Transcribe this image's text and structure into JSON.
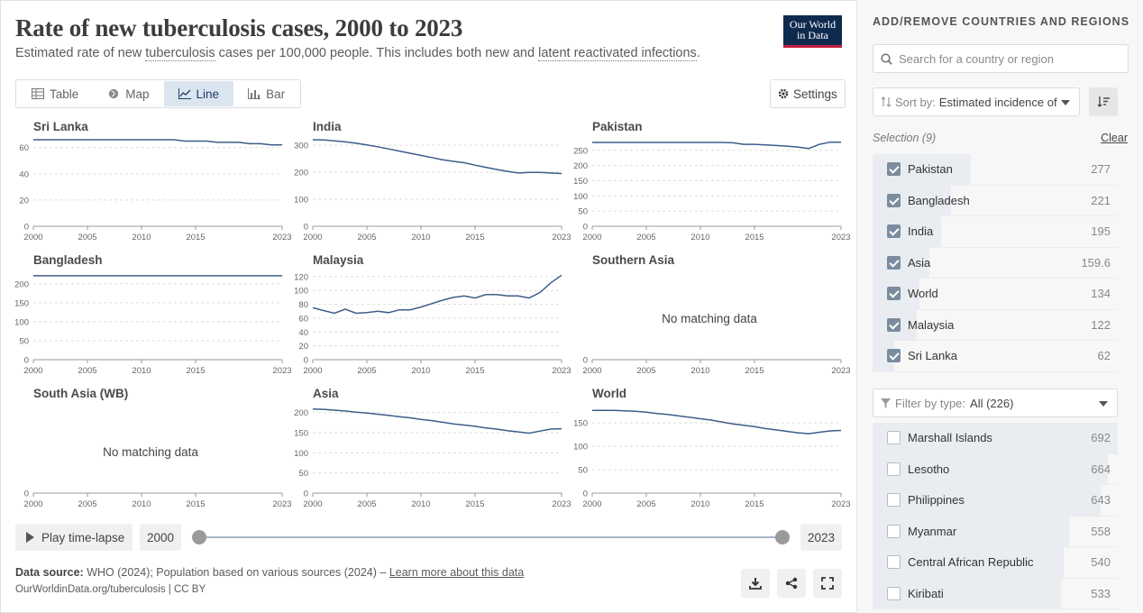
{
  "header": {
    "title": "Rate of new tuberculosis cases, 2000 to 2023",
    "subtitle_1": "Estimated rate of new ",
    "subtitle_link_1": "tuberculosis",
    "subtitle_2": " cases per 100,000 people. This includes both new and ",
    "subtitle_link_2": "latent reactivated infections",
    "subtitle_3": ".",
    "logo_line1": "Our World",
    "logo_line2": "in Data"
  },
  "tabs": [
    {
      "label": "Table",
      "icon": "table-icon",
      "active": false
    },
    {
      "label": "Map",
      "icon": "globe-icon",
      "active": false
    },
    {
      "label": "Line",
      "icon": "line-chart-icon",
      "active": true
    },
    {
      "label": "Bar",
      "icon": "bar-chart-icon",
      "active": false
    }
  ],
  "settings_label": "Settings",
  "chart_data": [
    {
      "type": "line",
      "title": "Sri Lanka",
      "x": [
        2000,
        2001,
        2002,
        2003,
        2004,
        2005,
        2006,
        2007,
        2008,
        2009,
        2010,
        2011,
        2012,
        2013,
        2014,
        2015,
        2016,
        2017,
        2018,
        2019,
        2020,
        2021,
        2022,
        2023
      ],
      "values": [
        66,
        66,
        66,
        66,
        66,
        66,
        66,
        66,
        66,
        66,
        66,
        66,
        66,
        66,
        65,
        65,
        65,
        64,
        64,
        64,
        63,
        63,
        62,
        62
      ],
      "yticks": [
        0,
        20,
        40,
        60
      ],
      "ylim": [
        0,
        66
      ],
      "xticks": [
        2000,
        2005,
        2010,
        2015,
        2023
      ]
    },
    {
      "type": "line",
      "title": "India",
      "x": [
        2000,
        2001,
        2002,
        2003,
        2004,
        2005,
        2006,
        2007,
        2008,
        2009,
        2010,
        2011,
        2012,
        2013,
        2014,
        2015,
        2016,
        2017,
        2018,
        2019,
        2020,
        2021,
        2022,
        2023
      ],
      "values": [
        320,
        319,
        316,
        312,
        307,
        301,
        294,
        286,
        278,
        270,
        262,
        254,
        246,
        240,
        235,
        226,
        218,
        210,
        203,
        197,
        199,
        199,
        197,
        195
      ],
      "yticks": [
        0,
        100,
        200,
        300
      ],
      "ylim": [
        0,
        320
      ],
      "xticks": [
        2000,
        2005,
        2010,
        2015,
        2023
      ]
    },
    {
      "type": "line",
      "title": "Pakistan",
      "x": [
        2000,
        2001,
        2002,
        2003,
        2004,
        2005,
        2006,
        2007,
        2008,
        2009,
        2010,
        2011,
        2012,
        2013,
        2014,
        2015,
        2016,
        2017,
        2018,
        2019,
        2020,
        2021,
        2022,
        2023
      ],
      "values": [
        276,
        276,
        276,
        276,
        276,
        276,
        276,
        276,
        276,
        276,
        276,
        276,
        276,
        275,
        270,
        270,
        268,
        266,
        264,
        261,
        256,
        270,
        277,
        277
      ],
      "yticks": [
        0,
        50,
        100,
        150,
        200,
        250
      ],
      "ylim": [
        0,
        285
      ],
      "xticks": [
        2000,
        2005,
        2010,
        2015,
        2023
      ]
    },
    {
      "type": "line",
      "title": "Bangladesh",
      "x": [
        2000,
        2001,
        2002,
        2003,
        2004,
        2005,
        2006,
        2007,
        2008,
        2009,
        2010,
        2011,
        2012,
        2013,
        2014,
        2015,
        2016,
        2017,
        2018,
        2019,
        2020,
        2021,
        2022,
        2023
      ],
      "values": [
        221,
        221,
        221,
        221,
        221,
        221,
        221,
        221,
        221,
        221,
        221,
        221,
        221,
        221,
        221,
        221,
        221,
        221,
        221,
        221,
        221,
        221,
        221,
        221
      ],
      "yticks": [
        0,
        50,
        100,
        150,
        200
      ],
      "ylim": [
        0,
        228
      ],
      "xticks": [
        2000,
        2005,
        2010,
        2015,
        2023
      ]
    },
    {
      "type": "line",
      "title": "Malaysia",
      "x": [
        2000,
        2001,
        2002,
        2003,
        2004,
        2005,
        2006,
        2007,
        2008,
        2009,
        2010,
        2011,
        2012,
        2013,
        2014,
        2015,
        2016,
        2017,
        2018,
        2019,
        2020,
        2021,
        2022,
        2023
      ],
      "values": [
        75,
        71,
        67,
        73,
        67,
        68,
        70,
        68,
        72,
        72,
        76,
        81,
        86,
        90,
        92,
        89,
        94,
        94,
        92,
        92,
        89,
        97,
        111,
        122
      ],
      "yticks": [
        0,
        20,
        40,
        60,
        80,
        100,
        120
      ],
      "ylim": [
        0,
        125
      ],
      "xticks": [
        2000,
        2005,
        2010,
        2015,
        2023
      ]
    },
    {
      "type": "line",
      "title": "Southern Asia",
      "no_data": "No matching data",
      "x": [],
      "values": [],
      "yticks": [
        0
      ],
      "ylim": [
        0,
        1
      ],
      "xticks": [
        2000,
        2005,
        2010,
        2015,
        2023
      ]
    },
    {
      "type": "line",
      "title": "South Asia (WB)",
      "no_data": "No matching data",
      "x": [],
      "values": [],
      "yticks": [
        0
      ],
      "ylim": [
        0,
        1
      ],
      "xticks": [
        2000,
        2005,
        2010,
        2015,
        2023
      ]
    },
    {
      "type": "line",
      "title": "Asia",
      "x": [
        2000,
        2001,
        2002,
        2003,
        2004,
        2005,
        2006,
        2007,
        2008,
        2009,
        2010,
        2011,
        2012,
        2013,
        2014,
        2015,
        2016,
        2017,
        2018,
        2019,
        2020,
        2021,
        2022,
        2023
      ],
      "values": [
        209,
        208,
        206,
        204,
        201,
        199,
        196,
        193,
        190,
        187,
        183,
        180,
        176,
        172,
        169,
        166,
        162,
        159,
        155,
        152,
        149,
        154,
        159,
        160
      ],
      "yticks": [
        0,
        50,
        100,
        150,
        200
      ],
      "ylim": [
        0,
        215
      ],
      "xticks": [
        2000,
        2005,
        2010,
        2015,
        2023
      ]
    },
    {
      "type": "line",
      "title": "World",
      "x": [
        2000,
        2001,
        2002,
        2003,
        2004,
        2005,
        2006,
        2007,
        2008,
        2009,
        2010,
        2011,
        2012,
        2013,
        2014,
        2015,
        2016,
        2017,
        2018,
        2019,
        2020,
        2021,
        2022,
        2023
      ],
      "values": [
        177,
        177,
        177,
        176,
        175,
        173,
        170,
        168,
        165,
        162,
        159,
        156,
        152,
        148,
        145,
        142,
        138,
        135,
        132,
        129,
        127,
        130,
        133,
        134
      ],
      "yticks": [
        0,
        50,
        100,
        150
      ],
      "ylim": [
        0,
        185
      ],
      "xticks": [
        2000,
        2005,
        2010,
        2015,
        2023
      ]
    }
  ],
  "timeline": {
    "play_label": "Play time-lapse",
    "start_year": "2000",
    "end_year": "2023"
  },
  "footer": {
    "source_label": "Data source:",
    "source_text": " WHO (2024); Population based on various sources (2024) – ",
    "learn_more": "Learn more about this data",
    "url": "OurWorldinData.org/tuberculosis | CC BY"
  },
  "sidebar": {
    "title": "ADD/REMOVE COUNTRIES AND REGIONS",
    "search_placeholder": "Search for a country or region",
    "sort_label": "Sort by:",
    "sort_value": "Estimated incidence of all forms of tuberculosis",
    "selection_label": "Selection (9)",
    "clear_label": "Clear",
    "selected": [
      {
        "name": "Pakistan",
        "value": "277",
        "fraction": 0.4
      },
      {
        "name": "Bangladesh",
        "value": "221",
        "fraction": 0.32
      },
      {
        "name": "India",
        "value": "195",
        "fraction": 0.28
      },
      {
        "name": "Asia",
        "value": "159.6",
        "fraction": 0.23
      },
      {
        "name": "World",
        "value": "134",
        "fraction": 0.19
      },
      {
        "name": "Malaysia",
        "value": "122",
        "fraction": 0.18
      },
      {
        "name": "Sri Lanka",
        "value": "62",
        "fraction": 0.09
      }
    ],
    "filter_label": "Filter by type:",
    "filter_value": "All (226)",
    "others": [
      {
        "name": "Marshall Islands",
        "value": "692",
        "fraction": 1.0
      },
      {
        "name": "Lesotho",
        "value": "664",
        "fraction": 0.96
      },
      {
        "name": "Philippines",
        "value": "643",
        "fraction": 0.93
      },
      {
        "name": "Myanmar",
        "value": "558",
        "fraction": 0.8
      },
      {
        "name": "Central African Republic",
        "value": "540",
        "fraction": 0.78
      },
      {
        "name": "Kiribati",
        "value": "533",
        "fraction": 0.77
      }
    ]
  },
  "colors": {
    "line": "#3e5c8a",
    "accent": "#0f2a4f",
    "logo_underline": "#c4203f"
  }
}
